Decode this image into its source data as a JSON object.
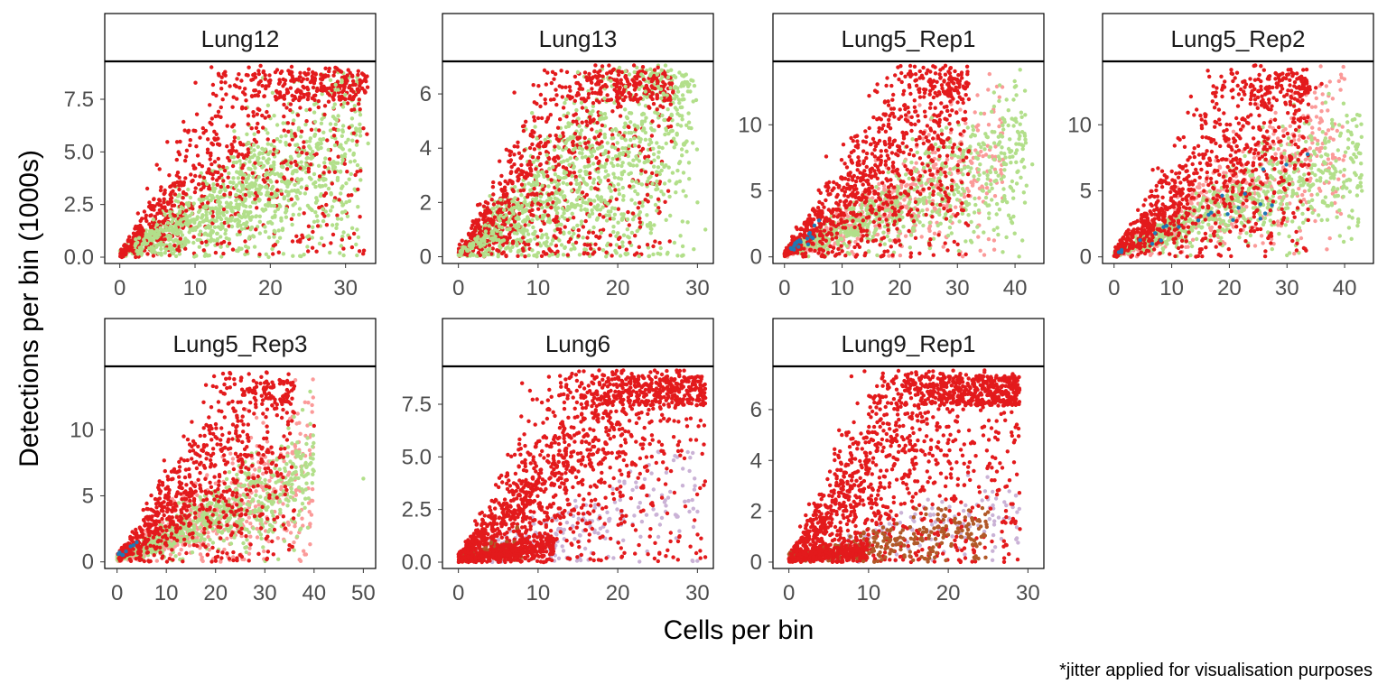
{
  "chart_data": {
    "type": "scatter",
    "layout": "facet-grid",
    "xlabel": "Cells per bin",
    "ylabel": "Detections per bin (1000s)",
    "caption": "*jitter applied for visualisation purposes",
    "legend": "none",
    "grid": false,
    "colors": {
      "red": "#e31a1c",
      "green": "#b2df8a",
      "pink": "#fb9a99",
      "blue": "#1f78b4",
      "lavender": "#cab2d6",
      "brown": "#b15928",
      "panel_border": "#000000",
      "tick_text": "#4d4d4d"
    },
    "panels": [
      {
        "title": "Lung12",
        "xlim": [
          -2,
          34
        ],
        "ylim": [
          -0.3,
          9.3
        ],
        "xticks": [
          0,
          10,
          20,
          30
        ],
        "xtick_labels": [
          "0",
          "10",
          "20",
          "30"
        ],
        "yticks": [
          0,
          2.5,
          5,
          7.5
        ],
        "ytick_labels": [
          "0.0",
          "2.5",
          "5.0",
          "7.5"
        ],
        "clouds": [
          {
            "color": "green",
            "n": 800,
            "x": [
              0,
              32
            ],
            "slope": 0.17,
            "spread": 0.5,
            "seed": 11
          },
          {
            "color": "red",
            "n": 900,
            "x": [
              0,
              33
            ],
            "slope": 0.33,
            "spread": 0.55,
            "seed": 12
          },
          {
            "color": "green",
            "n": 350,
            "x": [
              2,
              30
            ],
            "slope": 0.16,
            "spread": 0.45,
            "seed": 13
          }
        ],
        "points": [
          {
            "x": 14,
            "y": 8.8,
            "color": "red"
          },
          {
            "x": 29,
            "y": 8.9,
            "color": "red"
          },
          {
            "x": 25,
            "y": 8.7,
            "color": "red"
          },
          {
            "x": 33,
            "y": 5.4,
            "color": "green"
          },
          {
            "x": 31,
            "y": 7.5,
            "color": "red"
          },
          {
            "x": 32,
            "y": 4.1,
            "color": "red"
          }
        ]
      },
      {
        "title": "Lung13",
        "xlim": [
          -2,
          32
        ],
        "ylim": [
          -0.25,
          7.2
        ],
        "xticks": [
          0,
          10,
          20,
          30
        ],
        "xtick_labels": [
          "0",
          "10",
          "20",
          "30"
        ],
        "yticks": [
          0,
          2,
          4,
          6
        ],
        "ytick_labels": [
          "0",
          "2",
          "4",
          "6"
        ],
        "clouds": [
          {
            "color": "green",
            "n": 850,
            "x": [
              0,
              29
            ],
            "slope": 0.19,
            "spread": 0.65,
            "seed": 21
          },
          {
            "color": "red",
            "n": 950,
            "x": [
              0,
              27
            ],
            "slope": 0.3,
            "spread": 0.6,
            "seed": 22
          },
          {
            "color": "green",
            "n": 400,
            "x": [
              0,
              30
            ],
            "slope": 0.17,
            "spread": 0.5,
            "seed": 23
          }
        ],
        "points": [
          {
            "x": 15,
            "y": 6.8,
            "color": "green"
          },
          {
            "x": 31,
            "y": 1.0,
            "color": "green"
          },
          {
            "x": 30,
            "y": 2.0,
            "color": "green"
          }
        ]
      },
      {
        "title": "Lung5_Rep1",
        "xlim": [
          -2,
          45
        ],
        "ylim": [
          -0.5,
          14.8
        ],
        "xticks": [
          0,
          10,
          20,
          30,
          40
        ],
        "xtick_labels": [
          "0",
          "10",
          "20",
          "30",
          "40"
        ],
        "yticks": [
          0,
          5,
          10
        ],
        "ytick_labels": [
          "0",
          "5",
          "10"
        ],
        "clouds": [
          {
            "color": "pink",
            "n": 500,
            "x": [
              0,
              38
            ],
            "slope": 0.2,
            "spread": 0.45,
            "seed": 31
          },
          {
            "color": "green",
            "n": 700,
            "x": [
              0,
              42
            ],
            "slope": 0.19,
            "spread": 0.4,
            "seed": 32
          },
          {
            "color": "red",
            "n": 950,
            "x": [
              0,
              32
            ],
            "slope": 0.37,
            "spread": 0.55,
            "seed": 33
          },
          {
            "color": "blue",
            "n": 20,
            "x": [
              1,
              6
            ],
            "slope": 0.35,
            "spread": 0.3,
            "seed": 34
          }
        ],
        "points": [
          {
            "x": 29,
            "y": 13.3,
            "color": "red"
          },
          {
            "x": 41,
            "y": 6.0,
            "color": "green"
          },
          {
            "x": 43,
            "y": 7.0,
            "color": "green"
          }
        ]
      },
      {
        "title": "Lung5_Rep2",
        "xlim": [
          -2,
          45
        ],
        "ylim": [
          -0.5,
          14.8
        ],
        "xticks": [
          0,
          10,
          20,
          30,
          40
        ],
        "xtick_labels": [
          "0",
          "10",
          "20",
          "30",
          "40"
        ],
        "yticks": [
          0,
          5,
          10
        ],
        "ytick_labels": [
          "0",
          "5",
          "10"
        ],
        "clouds": [
          {
            "color": "pink",
            "n": 550,
            "x": [
              0,
              40
            ],
            "slope": 0.21,
            "spread": 0.45,
            "seed": 41
          },
          {
            "color": "green",
            "n": 700,
            "x": [
              0,
              43
            ],
            "slope": 0.17,
            "spread": 0.4,
            "seed": 42
          },
          {
            "color": "red",
            "n": 950,
            "x": [
              0,
              34
            ],
            "slope": 0.37,
            "spread": 0.55,
            "seed": 43
          },
          {
            "color": "blue",
            "n": 25,
            "x": [
              0,
              36
            ],
            "slope": 0.16,
            "spread": 0.35,
            "seed": 44
          }
        ],
        "points": [
          {
            "x": 36,
            "y": 13.1,
            "color": "red"
          },
          {
            "x": 35,
            "y": 12.8,
            "color": "red"
          },
          {
            "x": 43,
            "y": 5.0,
            "color": "green"
          }
        ]
      },
      {
        "title": "Lung5_Rep3",
        "xlim": [
          -2.5,
          52.5
        ],
        "ylim": [
          -0.5,
          14.8
        ],
        "xticks": [
          0,
          10,
          20,
          30,
          40,
          50
        ],
        "xtick_labels": [
          "0",
          "10",
          "20",
          "30",
          "40",
          "50"
        ],
        "yticks": [
          0,
          5,
          10
        ],
        "ytick_labels": [
          "0",
          "5",
          "10"
        ],
        "clouds": [
          {
            "color": "pink",
            "n": 550,
            "x": [
              0,
              40
            ],
            "slope": 0.17,
            "spread": 0.5,
            "seed": 51
          },
          {
            "color": "green",
            "n": 650,
            "x": [
              0,
              40
            ],
            "slope": 0.16,
            "spread": 0.4,
            "seed": 52
          },
          {
            "color": "red",
            "n": 850,
            "x": [
              0,
              36
            ],
            "slope": 0.33,
            "spread": 0.55,
            "seed": 53
          },
          {
            "color": "blue",
            "n": 8,
            "x": [
              0,
              4
            ],
            "slope": 0.3,
            "spread": 0.3,
            "seed": 54
          }
        ],
        "points": [
          {
            "x": 50,
            "y": 6.3,
            "color": "green"
          },
          {
            "x": 36,
            "y": 13.3,
            "color": "red"
          },
          {
            "x": 40,
            "y": 10.3,
            "color": "red"
          }
        ]
      },
      {
        "title": "Lung6",
        "xlim": [
          -2,
          32
        ],
        "ylim": [
          -0.3,
          9.3
        ],
        "xticks": [
          0,
          10,
          20,
          30
        ],
        "xtick_labels": [
          "0",
          "10",
          "20",
          "30"
        ],
        "yticks": [
          0,
          2.5,
          5,
          7.5
        ],
        "ytick_labels": [
          "0.0",
          "2.5",
          "5.0",
          "7.5"
        ],
        "clouds": [
          {
            "color": "lavender",
            "n": 250,
            "x": [
              0,
              30
            ],
            "slope": 0.09,
            "spread": 0.7,
            "seed": 61
          },
          {
            "color": "red",
            "n": 1500,
            "x": [
              0,
              31
            ],
            "slope": 0.36,
            "spread": 0.5,
            "seed": 62
          },
          {
            "color": "brown",
            "n": 60,
            "x": [
              0,
              8
            ],
            "slope": 0.1,
            "spread": 0.5,
            "seed": 63
          },
          {
            "color": "red",
            "n": 400,
            "x": [
              0,
              12
            ],
            "slope": 0.05,
            "spread": 0.6,
            "seed": 64
          }
        ],
        "points": [
          {
            "x": 31,
            "y": 7.8,
            "color": "red"
          },
          {
            "x": 30,
            "y": 2.4,
            "color": "lavender"
          },
          {
            "x": 29,
            "y": 2.4,
            "color": "lavender"
          },
          {
            "x": 8,
            "y": 8.5,
            "color": "red"
          }
        ]
      },
      {
        "title": "Lung9_Rep1",
        "xlim": [
          -2,
          32
        ],
        "ylim": [
          -0.25,
          7.7
        ],
        "xticks": [
          0,
          10,
          20,
          30
        ],
        "xtick_labels": [
          "0",
          "10",
          "20",
          "30"
        ],
        "yticks": [
          0,
          2,
          4,
          6
        ],
        "ytick_labels": [
          "0",
          "2",
          "4",
          "6"
        ],
        "clouds": [
          {
            "color": "lavender",
            "n": 180,
            "x": [
              2,
              29
            ],
            "slope": 0.07,
            "spread": 0.5,
            "seed": 71
          },
          {
            "color": "red",
            "n": 1500,
            "x": [
              0,
              29
            ],
            "slope": 0.33,
            "spread": 0.6,
            "seed": 72
          },
          {
            "color": "brown",
            "n": 300,
            "x": [
              0,
              25
            ],
            "slope": 0.05,
            "spread": 0.6,
            "seed": 73
          },
          {
            "color": "red",
            "n": 300,
            "x": [
              0,
              10
            ],
            "slope": 0.04,
            "spread": 0.6,
            "seed": 74
          }
        ],
        "points": [
          {
            "x": 29,
            "y": 1.3,
            "color": "red"
          },
          {
            "x": 28,
            "y": 1.6,
            "color": "red"
          },
          {
            "x": 26,
            "y": 2.5,
            "color": "lavender"
          }
        ]
      }
    ]
  }
}
